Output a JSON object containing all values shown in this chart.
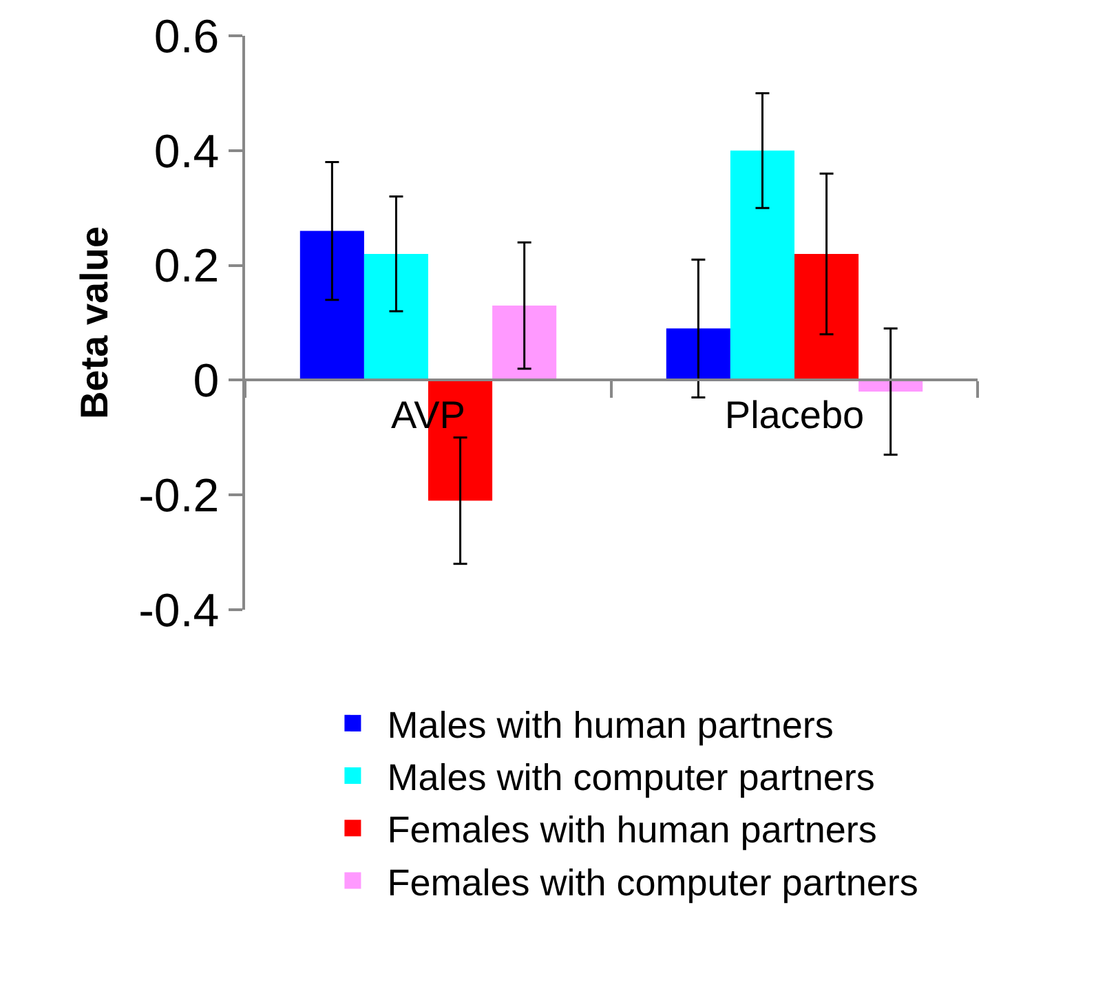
{
  "chart_data": {
    "type": "bar",
    "ylabel": "Beta value",
    "categories": [
      "AVP",
      "Placebo"
    ],
    "series": [
      {
        "name": "Males with human partners",
        "color": "#0000ff",
        "values": [
          0.26,
          0.09
        ],
        "errors": [
          0.12,
          0.12
        ]
      },
      {
        "name": "Males with computer partners",
        "color": "#00ffff",
        "values": [
          0.22,
          0.4
        ],
        "errors": [
          0.1,
          0.1
        ]
      },
      {
        "name": "Females with human partners",
        "color": "#ff0000",
        "values": [
          -0.21,
          0.22
        ],
        "errors": [
          0.11,
          0.14
        ]
      },
      {
        "name": "Females with computer partners",
        "color": "#ff99ff",
        "values": [
          0.13,
          -0.02
        ],
        "errors": [
          0.11,
          0.11
        ]
      }
    ],
    "ylim": [
      -0.4,
      0.6
    ],
    "yticks": [
      -0.4,
      -0.2,
      0,
      0.2,
      0.4,
      0.6
    ],
    "grid": false,
    "legend": "bottom"
  }
}
